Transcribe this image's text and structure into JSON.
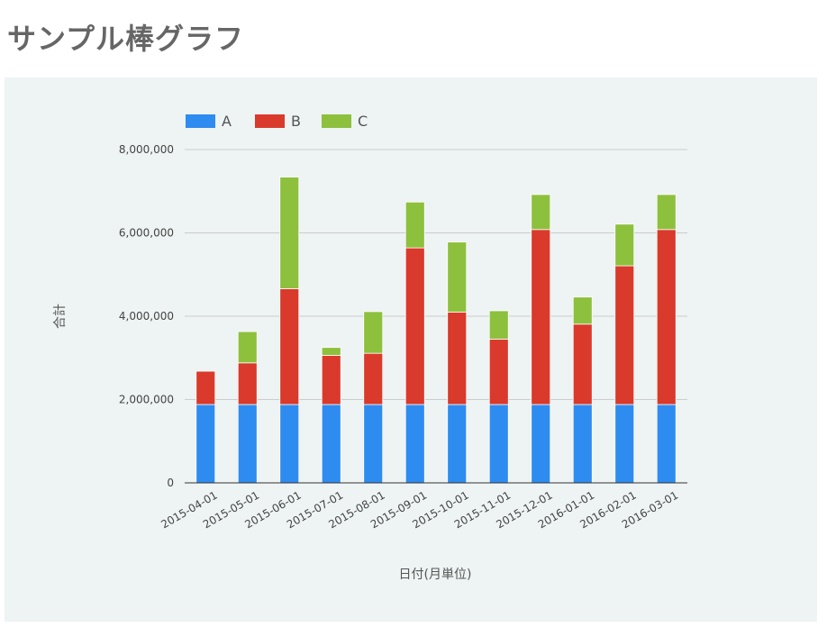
{
  "page": {
    "title": "サンプル棒グラフ"
  },
  "chart_data": {
    "type": "bar",
    "stacked": true,
    "title": "",
    "xlabel": "日付(月単位)",
    "ylabel": "合計",
    "ylim": [
      0,
      8000000
    ],
    "yticks": [
      0,
      2000000,
      4000000,
      6000000,
      8000000
    ],
    "ytick_labels": [
      "0",
      "2,000,000",
      "4,000,000",
      "6,000,000",
      "8,000,000"
    ],
    "legend_position": "top-left",
    "categories": [
      "2015-04-01",
      "2015-05-01",
      "2015-06-01",
      "2015-07-01",
      "2015-08-01",
      "2015-09-01",
      "2015-10-01",
      "2015-11-01",
      "2015-12-01",
      "2016-01-01",
      "2016-02-01",
      "2016-03-01"
    ],
    "series": [
      {
        "name": "A",
        "color": "#2e8cf0",
        "values": [
          1880000,
          1880000,
          1880000,
          1880000,
          1880000,
          1880000,
          1880000,
          1880000,
          1880000,
          1880000,
          1880000,
          1880000
        ]
      },
      {
        "name": "B",
        "color": "#d93a2b",
        "values": [
          800000,
          1000000,
          2780000,
          1180000,
          1230000,
          3760000,
          2220000,
          1570000,
          4200000,
          1930000,
          3330000,
          4200000
        ]
      },
      {
        "name": "C",
        "color": "#8dc03d",
        "values": [
          0,
          750000,
          2680000,
          190000,
          1000000,
          1100000,
          1680000,
          680000,
          840000,
          650000,
          1000000,
          840000
        ]
      }
    ]
  }
}
